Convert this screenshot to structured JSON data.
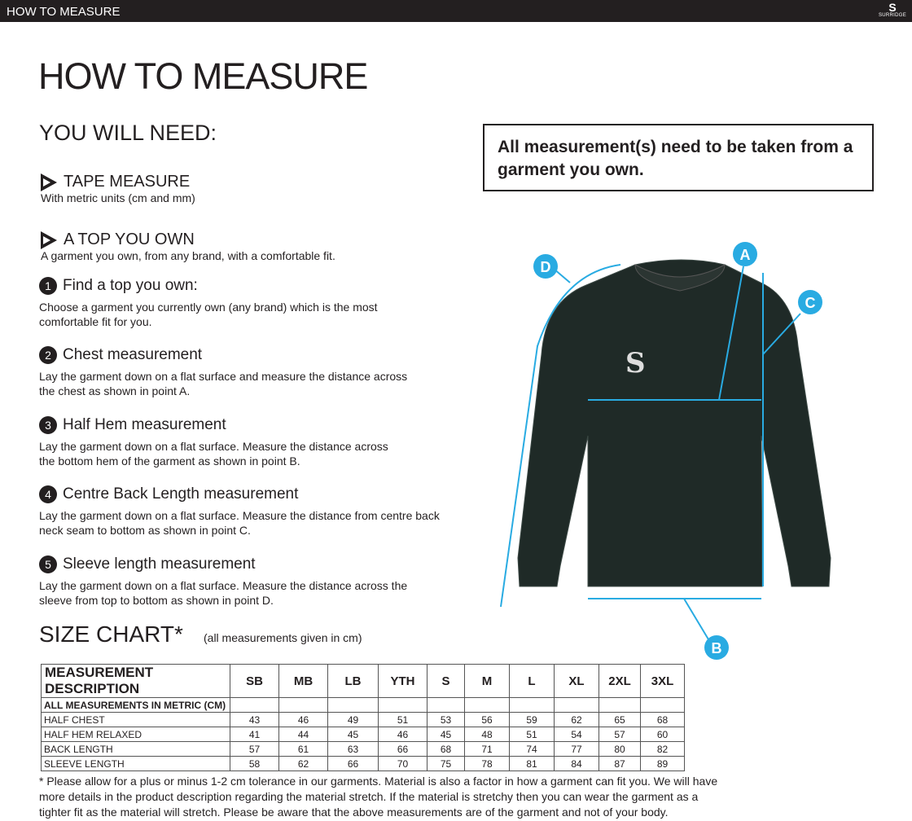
{
  "header": {
    "title": "HOW TO MEASURE",
    "logo_text": "SURRIDGE"
  },
  "page_title": "HOW TO MEASURE",
  "you_will_need": "YOU WILL NEED:",
  "notice": "All measurement(s) need to be taken from a garment you own.",
  "items": [
    {
      "title": "TAPE MEASURE",
      "desc": "With metric units (cm and mm)"
    },
    {
      "title": "A TOP YOU OWN",
      "desc": "A garment you own, from any brand, with a comfortable fit."
    }
  ],
  "steps": [
    {
      "num": "1",
      "title": "Find a top you own:",
      "desc": "Choose a garment you currently own (any brand) which is the most\ncomfortable fit for you."
    },
    {
      "num": "2",
      "title": "Chest measurement",
      "desc": "Lay the garment down on a flat surface and measure the distance across\nthe chest as shown in point A."
    },
    {
      "num": "3",
      "title": "Half Hem measurement",
      "desc": "Lay the garment down on a flat surface. Measure the distance across\nthe bottom hem of the garment as shown in point B."
    },
    {
      "num": "4",
      "title": "Centre Back Length measurement",
      "desc": "Lay the garment down on a flat surface. Measure the distance from centre back\nneck seam to bottom as shown in point C."
    },
    {
      "num": "5",
      "title": "Sleeve length measurement",
      "desc": "Lay the garment down on a flat surface. Measure the distance across the\n sleeve from top to bottom as shown in point D."
    }
  ],
  "diagram": {
    "labels": [
      "A",
      "B",
      "C",
      "D"
    ],
    "accent": "#29abe2"
  },
  "size_chart": {
    "title": "SIZE CHART*",
    "note": "(all measurements given in cm)",
    "headers": [
      "MEASUREMENT DESCRIPTION",
      "SB",
      "MB",
      "LB",
      "YTH",
      "S",
      "M",
      "L",
      "XL",
      "2XL",
      "3XL"
    ],
    "subheader": "ALL MEASUREMENTS IN METRIC (CM)",
    "rows": [
      [
        "HALF CHEST",
        "43",
        "46",
        "49",
        "51",
        "53",
        "56",
        "59",
        "62",
        "65",
        "68"
      ],
      [
        "HALF HEM RELAXED",
        "41",
        "44",
        "45",
        "46",
        "45",
        "48",
        "51",
        "54",
        "57",
        "60"
      ],
      [
        "BACK LENGTH",
        "57",
        "61",
        "63",
        "66",
        "68",
        "71",
        "74",
        "77",
        "80",
        "82"
      ],
      [
        "SLEEVE LENGTH",
        "58",
        "62",
        "66",
        "70",
        "75",
        "78",
        "81",
        "84",
        "87",
        "89"
      ]
    ]
  },
  "footnote": "* Please allow for a plus or minus 1-2 cm tolerance in our garments. Material is also a factor in how a garment can fit you. We will have more details in the product description regarding the material stretch.  If the material is stretchy then you can wear the garment as a tighter fit as the material will stretch.  Please be aware that the above measurements are of the garment and not of your body."
}
